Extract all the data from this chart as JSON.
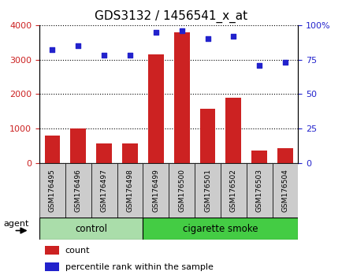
{
  "title": "GDS3132 / 1456541_x_at",
  "samples": [
    "GSM176495",
    "GSM176496",
    "GSM176497",
    "GSM176498",
    "GSM176499",
    "GSM176500",
    "GSM176501",
    "GSM176502",
    "GSM176503",
    "GSM176504"
  ],
  "counts": [
    800,
    1000,
    570,
    570,
    3150,
    3800,
    1570,
    1900,
    370,
    430
  ],
  "percentiles": [
    82,
    85,
    78,
    78,
    95,
    96,
    90,
    92,
    71,
    73
  ],
  "bar_color": "#cc2222",
  "dot_color": "#2222cc",
  "ylim_left": [
    0,
    4000
  ],
  "ylim_right": [
    0,
    100
  ],
  "yticks_left": [
    0,
    1000,
    2000,
    3000,
    4000
  ],
  "yticks_right": [
    0,
    25,
    50,
    75,
    100
  ],
  "yticklabels_right": [
    "0",
    "25",
    "50",
    "75",
    "100%"
  ],
  "groups": [
    {
      "label": "control",
      "start": 0,
      "end": 4,
      "color": "#aaddaa"
    },
    {
      "label": "cigarette smoke",
      "start": 4,
      "end": 10,
      "color": "#44cc44"
    }
  ],
  "xlabel_agent": "agent",
  "legend_count_label": "count",
  "legend_pct_label": "percentile rank within the sample",
  "title_fontsize": 11,
  "axis_label_color_left": "#cc2222",
  "axis_label_color_right": "#2222cc",
  "background_plot": "#ffffff",
  "background_sample_box": "#cccccc",
  "grid_color": "#000000"
}
